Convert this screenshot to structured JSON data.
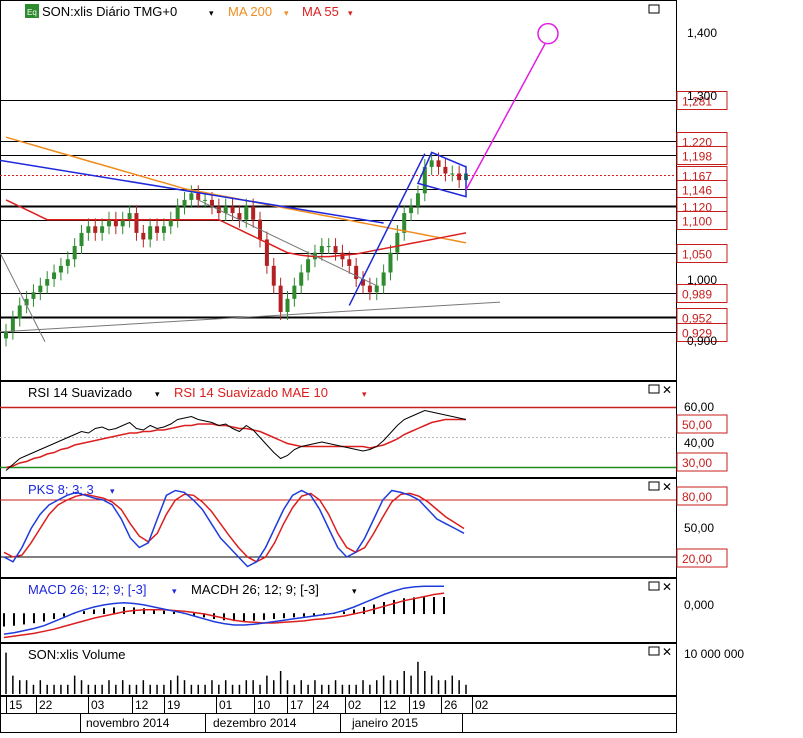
{
  "main": {
    "ticker_badge": "Eq",
    "title": "SON:xlis Diário TMG+0",
    "ma200_label": "MA 200",
    "ma55_label": "MA 55",
    "price_ticks": [
      "1,400",
      "1,300",
      "1,000",
      "0,900"
    ],
    "hline_labels": [
      "1,281",
      "1,220",
      "1,198",
      "1,167",
      "1,146",
      "1,120",
      "1,100",
      "1,050",
      "0,989",
      "0,952",
      "0,929"
    ]
  },
  "rsi": {
    "label": "RSI 14 Suavizado",
    "signal_label": "RSI 14 Suavizado MAE 10",
    "ticks": [
      "60,00",
      "50,00",
      "40,00",
      "30,00"
    ]
  },
  "pks": {
    "label": "PKS 8; 3; 3",
    "ticks": [
      "80,00",
      "50,00",
      "20,00"
    ]
  },
  "macd": {
    "label": "MACD 26; 12; 9; [-3]",
    "hist_label": "MACDH 26; 12; 9; [-3]",
    "ticks": [
      "0,000"
    ]
  },
  "volume": {
    "label": "SON:xlis Volume",
    "ticks": [
      "10 000 000"
    ]
  },
  "xaxis": {
    "days": [
      "15",
      "22",
      "03",
      "12",
      "19",
      "01",
      "10",
      "17",
      "24",
      "02",
      "12",
      "19",
      "26",
      "02"
    ],
    "months": [
      "novembro 2014",
      "dezembro 2014",
      "janeiro 2015"
    ]
  },
  "colors": {
    "background": "#ffffff",
    "up_candle": "#2e8b2e",
    "down_candle": "#b22222",
    "ma200": "#f08c1e",
    "ma55": "#dc1e1e",
    "trend_blue": "#1e28dc",
    "target_magenta": "#e11ee1",
    "rsi_line": "#000000",
    "signal_red": "#dc1e1e",
    "k_line": "#1e3cdc",
    "threshold_green": "#1e8c1e",
    "label_red": "#c81e1e",
    "label_blue": "#1e28dc"
  },
  "chart_data": [
    {
      "type": "line",
      "panel": "price",
      "ylim": [
        0.86,
        1.43
      ],
      "x_count": 68,
      "series": [
        {
          "name": "SON:xlis",
          "kind": "candlestick",
          "close": [
            0.93,
            0.95,
            0.97,
            0.98,
            0.99,
            1.0,
            1.01,
            1.02,
            1.03,
            1.04,
            1.06,
            1.08,
            1.09,
            1.08,
            1.09,
            1.1,
            1.09,
            1.1,
            1.11,
            1.08,
            1.07,
            1.09,
            1.08,
            1.09,
            1.1,
            1.12,
            1.13,
            1.14,
            1.13,
            1.13,
            1.12,
            1.11,
            1.12,
            1.11,
            1.1,
            1.12,
            1.1,
            1.07,
            1.03,
            1.0,
            0.96,
            0.98,
            1.0,
            1.02,
            1.04,
            1.05,
            1.06,
            1.06,
            1.05,
            1.04,
            1.03,
            1.01,
            1.0,
            0.99,
            1.0,
            1.02,
            1.05,
            1.08,
            1.11,
            1.12,
            1.14,
            1.18,
            1.19,
            1.18,
            1.17,
            1.17,
            1.16,
            1.17
          ]
        },
        {
          "name": "MA 200",
          "values": [
            1.225,
            1.222,
            1.219,
            1.216,
            1.213,
            1.21,
            1.207,
            1.204,
            1.201,
            1.198,
            1.195,
            1.192,
            1.189,
            1.186,
            1.183,
            1.18,
            1.177,
            1.174,
            1.171,
            1.168,
            1.165,
            1.162,
            1.159,
            1.156,
            1.153,
            1.15,
            1.147,
            1.145,
            1.143,
            1.141,
            1.139,
            1.137,
            1.135,
            1.133,
            1.131,
            1.129,
            1.127,
            1.125,
            1.123,
            1.121,
            1.119,
            1.117,
            1.115,
            1.113,
            1.111,
            1.109,
            1.107,
            1.105,
            1.103,
            1.101,
            1.099,
            1.097,
            1.095,
            1.093,
            1.091,
            1.089,
            1.087,
            1.085,
            1.083,
            1.081,
            1.079,
            1.077,
            1.075,
            1.073,
            1.071,
            1.069,
            1.067,
            1.065
          ]
        },
        {
          "name": "MA 55",
          "values": [
            1.13,
            1.125,
            1.12,
            1.115,
            1.11,
            1.105,
            1.1,
            1.1,
            1.1,
            1.1,
            1.1,
            1.1,
            1.1,
            1.1,
            1.1,
            1.1,
            1.1,
            1.1,
            1.1,
            1.1,
            1.1,
            1.1,
            1.1,
            1.1,
            1.1,
            1.1,
            1.1,
            1.1,
            1.1,
            1.1,
            1.1,
            1.1,
            1.095,
            1.09,
            1.085,
            1.08,
            1.075,
            1.07,
            1.065,
            1.06,
            1.055,
            1.05,
            1.048,
            1.046,
            1.045,
            1.044,
            1.044,
            1.044,
            1.045,
            1.046,
            1.047,
            1.048,
            1.05,
            1.052,
            1.054,
            1.056,
            1.058,
            1.06,
            1.062,
            1.064,
            1.066,
            1.068,
            1.07,
            1.072,
            1.074,
            1.076,
            1.078,
            1.08
          ]
        }
      ],
      "hlines": [
        1.281,
        1.22,
        1.198,
        1.167,
        1.146,
        1.12,
        1.1,
        1.05,
        0.989,
        0.952,
        0.929
      ]
    },
    {
      "type": "line",
      "panel": "rsi",
      "ylim": [
        25,
        75
      ],
      "series": [
        {
          "name": "RSI 14 Suavizado",
          "values": [
            28,
            32,
            36,
            38,
            40,
            42,
            44,
            46,
            48,
            50,
            52,
            54,
            53,
            56,
            57,
            55,
            56,
            58,
            60,
            56,
            55,
            58,
            56,
            57,
            59,
            62,
            63,
            64,
            62,
            61,
            60,
            58,
            59,
            56,
            54,
            58,
            55,
            50,
            45,
            40,
            36,
            38,
            42,
            44,
            45,
            46,
            47,
            46,
            45,
            44,
            43,
            42,
            41,
            42,
            44,
            48,
            53,
            58,
            62,
            64,
            66,
            68,
            67,
            66,
            65,
            64,
            63,
            62
          ]
        },
        {
          "name": "RSI 14 Suavizado MAE 10",
          "values": [
            30,
            31,
            33,
            34,
            36,
            37,
            39,
            40,
            42,
            43,
            45,
            46,
            47,
            48,
            49,
            50,
            51,
            52,
            53,
            53,
            54,
            54,
            55,
            55,
            56,
            57,
            58,
            58,
            59,
            59,
            59,
            58,
            58,
            57,
            56,
            56,
            55,
            54,
            52,
            50,
            48,
            46,
            45,
            44,
            44,
            44,
            44,
            44,
            44,
            44,
            44,
            44,
            44,
            43,
            44,
            45,
            47,
            49,
            52,
            54,
            56,
            58,
            60,
            61,
            62,
            62,
            62,
            62
          ]
        }
      ],
      "thresholds": [
        70,
        30
      ]
    },
    {
      "type": "line",
      "panel": "stochastic",
      "ylim": [
        0,
        100
      ],
      "series": [
        {
          "name": "PKS 8; 3; 3",
          "values": [
            20,
            15,
            30,
            50,
            65,
            75,
            80,
            85,
            88,
            85,
            82,
            80,
            75,
            60,
            40,
            30,
            35,
            60,
            85,
            90,
            88,
            80,
            70,
            55,
            40,
            30,
            20,
            10,
            15,
            30,
            50,
            70,
            85,
            90,
            85,
            70,
            50,
            30,
            20,
            25,
            40,
            60,
            80,
            90,
            88,
            85,
            80,
            70,
            60,
            55,
            50,
            45
          ]
        },
        {
          "name": "PKS signal",
          "values": [
            25,
            20,
            22,
            35,
            50,
            65,
            75,
            80,
            84,
            86,
            84,
            82,
            78,
            70,
            55,
            42,
            36,
            45,
            65,
            80,
            86,
            85,
            78,
            68,
            55,
            42,
            30,
            20,
            15,
            20,
            35,
            55,
            72,
            84,
            87,
            80,
            65,
            45,
            30,
            25,
            30,
            45,
            62,
            78,
            86,
            87,
            84,
            78,
            70,
            62,
            56,
            50
          ]
        }
      ],
      "thresholds": [
        80,
        20
      ]
    },
    {
      "type": "line",
      "panel": "macd",
      "series": [
        {
          "name": "MACD 26; 12; 9; [-3]",
          "values": [
            -0.03,
            -0.028,
            -0.025,
            -0.022,
            -0.018,
            -0.012,
            -0.006,
            0.0,
            0.005,
            0.009,
            0.012,
            0.014,
            0.015,
            0.014,
            0.012,
            0.009,
            0.006,
            0.003,
            0.0,
            -0.004,
            -0.008,
            -0.012,
            -0.015,
            -0.017,
            -0.017,
            -0.016,
            -0.014,
            -0.012,
            -0.01,
            -0.008,
            -0.006,
            -0.004,
            -0.002,
            0.0,
            0.004,
            0.009,
            0.015,
            0.021,
            0.027,
            0.032,
            0.036,
            0.038,
            0.039,
            0.039,
            0.039
          ]
        },
        {
          "name": "MACDH 26; 12; 9; [-3]",
          "values": [
            -0.035,
            -0.033,
            -0.031,
            -0.029,
            -0.026,
            -0.023,
            -0.019,
            -0.015,
            -0.011,
            -0.007,
            -0.004,
            -0.001,
            0.002,
            0.004,
            0.005,
            0.005,
            0.005,
            0.004,
            0.003,
            0.001,
            -0.001,
            -0.004,
            -0.007,
            -0.01,
            -0.012,
            -0.013,
            -0.014,
            -0.014,
            -0.013,
            -0.012,
            -0.011,
            -0.009,
            -0.008,
            -0.006,
            -0.004,
            -0.001,
            0.002,
            0.006,
            0.01,
            0.014,
            0.018,
            0.021,
            0.024,
            0.027,
            0.029
          ]
        }
      ]
    },
    {
      "type": "bar",
      "panel": "volume",
      "values": [
        9,
        4,
        3,
        3,
        2,
        3,
        2,
        2,
        2,
        2,
        4,
        3,
        2,
        2,
        2,
        3,
        2,
        3,
        2,
        2,
        3,
        2,
        2,
        2,
        3,
        4,
        3,
        2,
        2,
        2,
        3,
        2,
        3,
        2,
        2,
        3,
        3,
        2,
        4,
        3,
        5,
        3,
        2,
        3,
        2,
        3,
        2,
        2,
        3,
        2,
        2,
        2,
        3,
        2,
        3,
        4,
        3,
        3,
        5,
        4,
        7,
        5,
        4,
        3,
        3,
        4,
        3,
        2
      ]
    }
  ]
}
